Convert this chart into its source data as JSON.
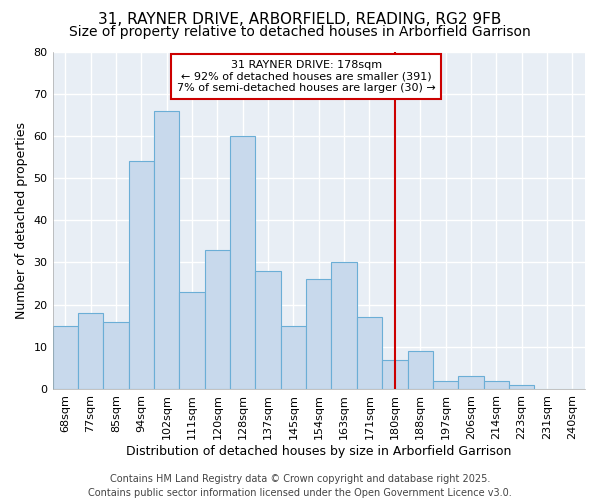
{
  "title": "31, RAYNER DRIVE, ARBORFIELD, READING, RG2 9FB",
  "subtitle": "Size of property relative to detached houses in Arborfield Garrison",
  "xlabel": "Distribution of detached houses by size in Arborfield Garrison",
  "ylabel": "Number of detached properties",
  "categories": [
    "68sqm",
    "77sqm",
    "85sqm",
    "94sqm",
    "102sqm",
    "111sqm",
    "120sqm",
    "128sqm",
    "137sqm",
    "145sqm",
    "154sqm",
    "163sqm",
    "171sqm",
    "180sqm",
    "188sqm",
    "197sqm",
    "206sqm",
    "214sqm",
    "223sqm",
    "231sqm",
    "240sqm"
  ],
  "values": [
    15,
    18,
    16,
    54,
    66,
    23,
    33,
    60,
    28,
    15,
    26,
    30,
    17,
    7,
    9,
    2,
    3,
    2,
    1,
    0,
    0
  ],
  "bar_color": "#c8d9ec",
  "bar_edge_color": "#6baed6",
  "figure_background": "#ffffff",
  "axes_background": "#e8eef5",
  "grid_color": "#ffffff",
  "vline_x_index": 13,
  "vline_color": "#cc0000",
  "annotation_line1": "31 RAYNER DRIVE: 178sqm",
  "annotation_line2": "← 92% of detached houses are smaller (391)",
  "annotation_line3": "7% of semi-detached houses are larger (30) →",
  "annotation_box_edgecolor": "#cc0000",
  "ylim": [
    0,
    80
  ],
  "yticks": [
    0,
    10,
    20,
    30,
    40,
    50,
    60,
    70,
    80
  ],
  "footer": "Contains HM Land Registry data © Crown copyright and database right 2025.\nContains public sector information licensed under the Open Government Licence v3.0.",
  "title_fontsize": 11,
  "subtitle_fontsize": 10,
  "axis_label_fontsize": 9,
  "tick_fontsize": 8,
  "annotation_fontsize": 8,
  "footer_fontsize": 7
}
